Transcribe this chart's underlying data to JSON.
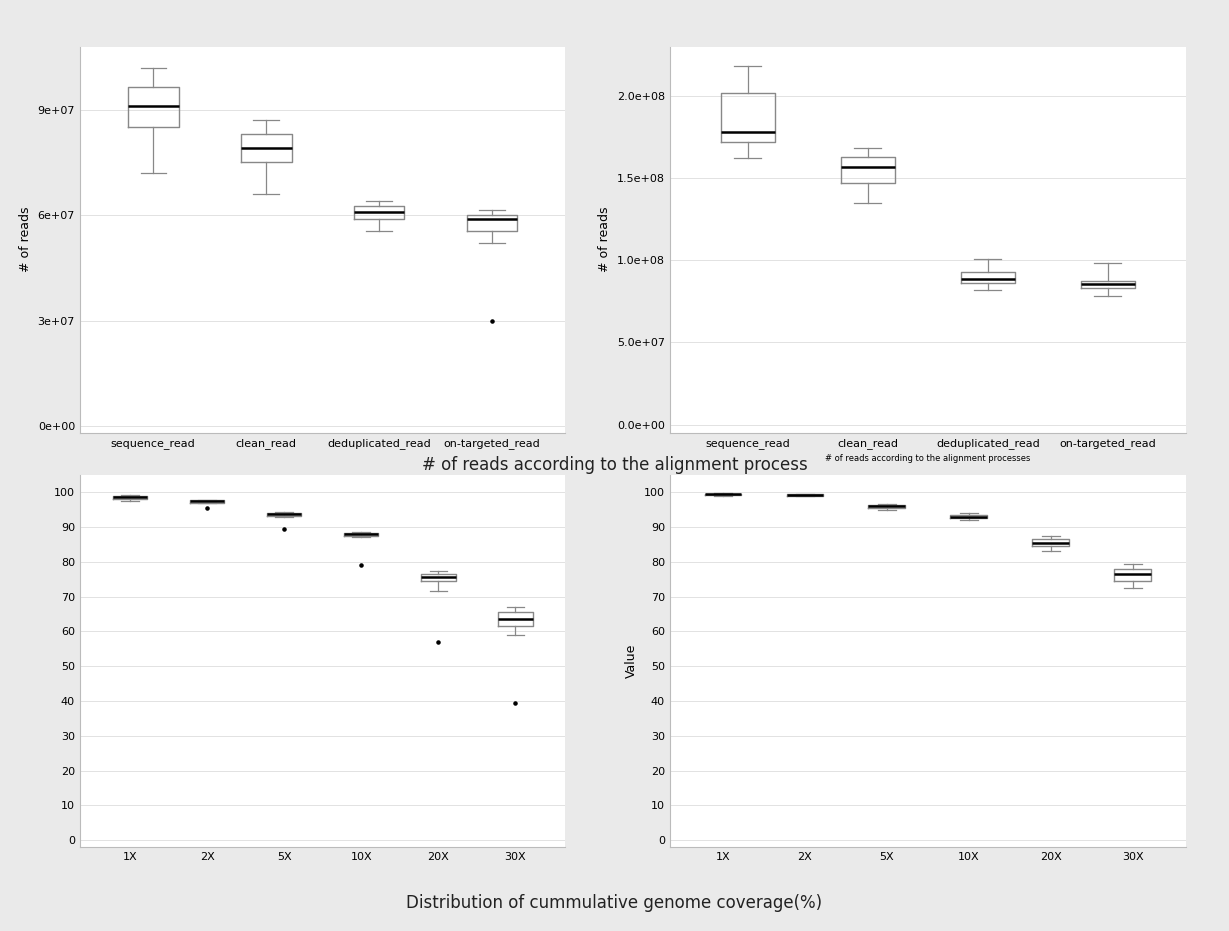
{
  "top_left": {
    "ylabel": "# of reads",
    "categories": [
      "sequence_read",
      "clean_read",
      "deduplicated_read",
      "on-targeted_read"
    ],
    "boxes": [
      {
        "q1": 85000000.0,
        "median": 91000000.0,
        "q3": 96500000.0,
        "whislo": 72000000.0,
        "whishi": 102000000.0,
        "fliers": []
      },
      {
        "q1": 75000000.0,
        "median": 79000000.0,
        "q3": 83000000.0,
        "whislo": 66000000.0,
        "whishi": 87000000.0,
        "fliers": []
      },
      {
        "q1": 59000000.0,
        "median": 61000000.0,
        "q3": 62500000.0,
        "whislo": 55500000.0,
        "whishi": 64000000.0,
        "fliers": []
      },
      {
        "q1": 55500000.0,
        "median": 59000000.0,
        "q3": 60000000.0,
        "whislo": 52000000.0,
        "whishi": 61500000.0,
        "fliers": [
          30000000.0
        ]
      }
    ],
    "ylim": [
      -2000000.0,
      108000000.0
    ],
    "yticks": [
      0,
      30000000.0,
      60000000.0,
      90000000.0
    ],
    "yticklabels": [
      "0e+00",
      "3e+07",
      "6e+07",
      "9e+07"
    ]
  },
  "top_right": {
    "ylabel": "# of reads",
    "xlabel": "# of reads according to the alignment processes",
    "categories": [
      "sequence_read",
      "clean_read",
      "deduplicated_read",
      "on-targeted_read"
    ],
    "boxes": [
      {
        "q1": 172000000.0,
        "median": 178000000.0,
        "q3": 202000000.0,
        "whislo": 162000000.0,
        "whishi": 218000000.0,
        "fliers": []
      },
      {
        "q1": 147000000.0,
        "median": 157000000.0,
        "q3": 163000000.0,
        "whislo": 135000000.0,
        "whishi": 168000000.0,
        "fliers": []
      },
      {
        "q1": 86000000.0,
        "median": 88500000.0,
        "q3": 93000000.0,
        "whislo": 82000000.0,
        "whishi": 101000000.0,
        "fliers": []
      },
      {
        "q1": 83000000.0,
        "median": 85500000.0,
        "q3": 87500000.0,
        "whislo": 78000000.0,
        "whishi": 98500000.0,
        "fliers": []
      }
    ],
    "ylim": [
      -5000000.0,
      230000000.0
    ],
    "yticks": [
      0,
      50000000.0,
      100000000.0,
      150000000.0,
      200000000.0
    ],
    "yticklabels": [
      "0.0e+00",
      "5.0e+07",
      "1.0e+08",
      "1.5e+08",
      "2.0e+08"
    ]
  },
  "bottom_left": {
    "ylabel": "",
    "categories": [
      "1X",
      "2X",
      "5X",
      "10X",
      "20X",
      "30X"
    ],
    "boxes": [
      {
        "q1": 98.0,
        "median": 98.5,
        "q3": 98.9,
        "whislo": 97.5,
        "whishi": 99.1,
        "fliers": []
      },
      {
        "q1": 97.0,
        "median": 97.5,
        "q3": 97.8,
        "whislo": 96.8,
        "whishi": 97.9,
        "fliers": [
          95.5
        ]
      },
      {
        "q1": 93.3,
        "median": 93.7,
        "q3": 94.0,
        "whislo": 93.0,
        "whishi": 94.2,
        "fliers": [
          89.5
        ]
      },
      {
        "q1": 87.5,
        "median": 88.0,
        "q3": 88.4,
        "whislo": 87.0,
        "whishi": 88.7,
        "fliers": [
          79.0
        ]
      },
      {
        "q1": 74.5,
        "median": 75.5,
        "q3": 76.5,
        "whislo": 71.5,
        "whishi": 77.5,
        "fliers": [
          57.0
        ]
      },
      {
        "q1": 61.5,
        "median": 63.5,
        "q3": 65.5,
        "whislo": 59.0,
        "whishi": 67.0,
        "fliers": [
          39.5
        ]
      }
    ],
    "ylim": [
      -2,
      105
    ],
    "yticks": [
      0,
      10,
      20,
      30,
      40,
      50,
      60,
      70,
      80,
      90,
      100
    ],
    "yticklabels": [
      "0",
      "10",
      "20",
      "30",
      "40",
      "50",
      "60",
      "70",
      "80",
      "90",
      "100"
    ]
  },
  "bottom_right": {
    "ylabel": "Value",
    "categories": [
      "1X",
      "2X",
      "5X",
      "10X",
      "20X",
      "30X"
    ],
    "boxes": [
      {
        "q1": 99.2,
        "median": 99.5,
        "q3": 99.6,
        "whislo": 99.0,
        "whishi": 99.7,
        "fliers": []
      },
      {
        "q1": 99.0,
        "median": 99.3,
        "q3": 99.5,
        "whislo": 98.8,
        "whishi": 99.6,
        "fliers": []
      },
      {
        "q1": 95.5,
        "median": 96.0,
        "q3": 96.3,
        "whislo": 95.0,
        "whishi": 96.7,
        "fliers": []
      },
      {
        "q1": 92.5,
        "median": 93.0,
        "q3": 93.5,
        "whislo": 92.0,
        "whishi": 94.0,
        "fliers": []
      },
      {
        "q1": 84.5,
        "median": 85.5,
        "q3": 86.5,
        "whislo": 83.0,
        "whishi": 87.5,
        "fliers": []
      },
      {
        "q1": 74.5,
        "median": 76.5,
        "q3": 78.0,
        "whislo": 72.5,
        "whishi": 79.5,
        "fliers": []
      }
    ],
    "ylim": [
      -2,
      105
    ],
    "yticks": [
      0,
      10,
      20,
      30,
      40,
      50,
      60,
      70,
      80,
      90,
      100
    ],
    "yticklabels": [
      "0",
      "10",
      "20",
      "30",
      "40",
      "50",
      "60",
      "70",
      "80",
      "90",
      "100"
    ]
  },
  "title": "# of reads according to the alignment process",
  "bottom_title": "Distribution of cummulative genome coverage(%)",
  "figure_bg": "#eaeaea",
  "axes_bg": "#ffffff",
  "box_color": "#888888",
  "median_color": "#000000",
  "whisker_color": "#888888",
  "flier_color": "#000000",
  "fontsize": 9,
  "title_fontsize": 12
}
